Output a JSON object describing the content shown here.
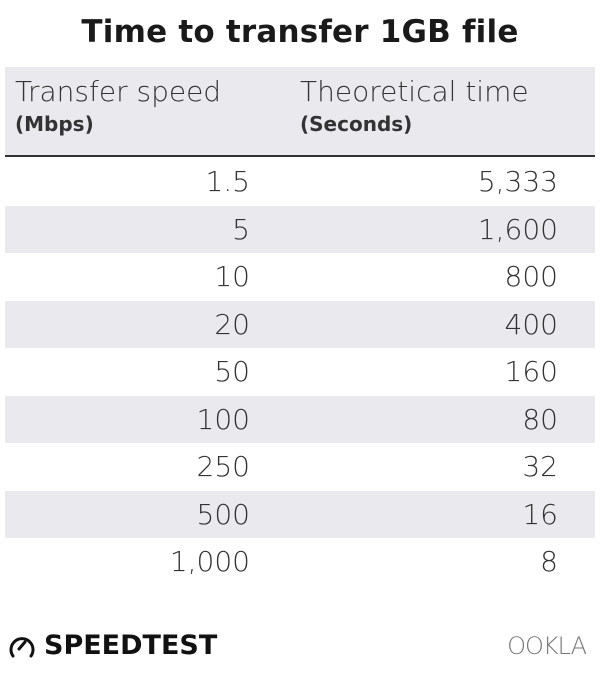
{
  "chart_data": {
    "type": "table",
    "title": "Time to transfer 1GB file",
    "columns": [
      {
        "label": "Transfer speed",
        "unit": "(Mbps)"
      },
      {
        "label": "Theoretical time",
        "unit": "(Seconds)"
      }
    ],
    "rows": [
      [
        "1.5",
        "5,333"
      ],
      [
        "5",
        "1,600"
      ],
      [
        "10",
        "800"
      ],
      [
        "20",
        "400"
      ],
      [
        "50",
        "160"
      ],
      [
        "100",
        "80"
      ],
      [
        "250",
        "32"
      ],
      [
        "500",
        "16"
      ],
      [
        "1,000",
        "8"
      ]
    ]
  },
  "footer": {
    "brand_left": "SPEEDTEST",
    "brand_right": "OOKLA",
    "brand_left_icon": "speedometer-icon"
  },
  "colors": {
    "header_bg": "#e9e9ee",
    "stripe": "#e9e9ee",
    "rule": "#333333"
  }
}
